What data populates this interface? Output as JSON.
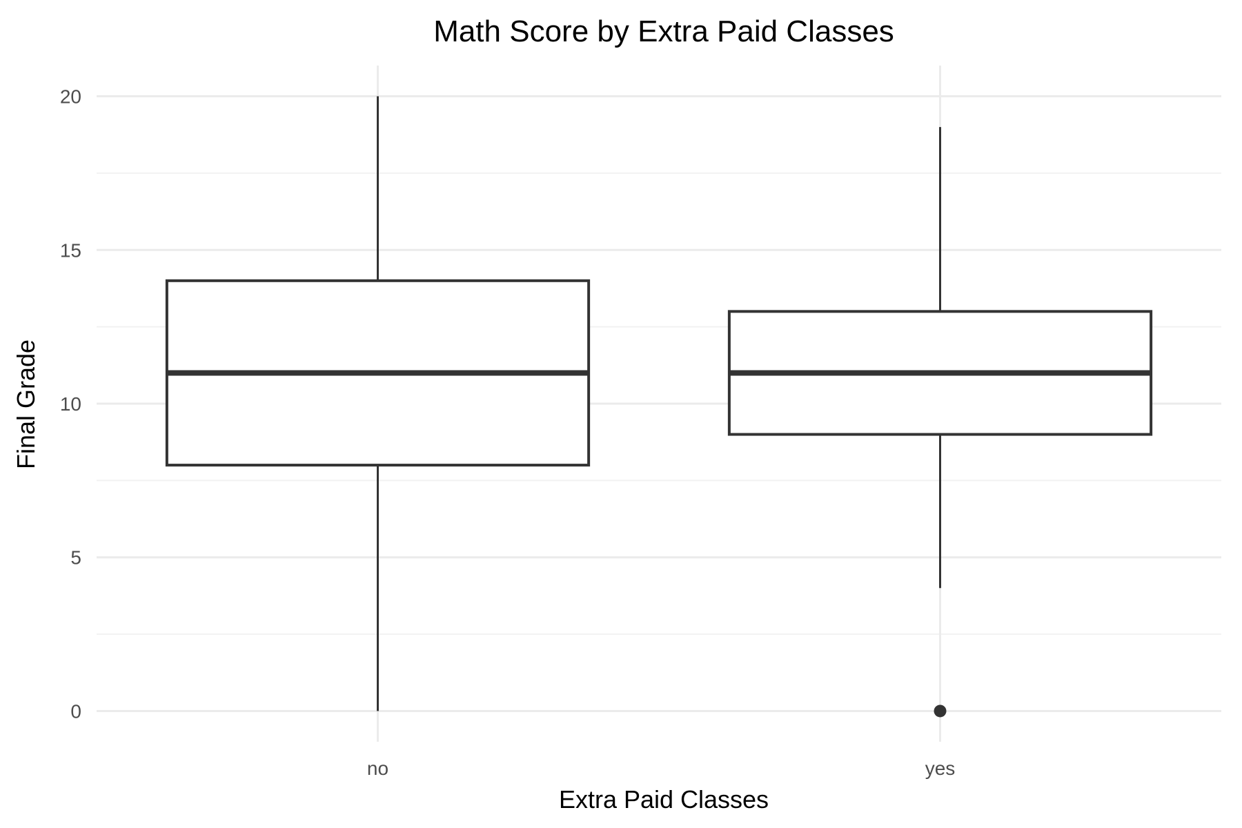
{
  "chart_data": {
    "type": "box",
    "title": "Math Score by Extra Paid Classes",
    "xlabel": "Extra Paid Classes",
    "ylabel": "Final Grade",
    "categories": [
      "no",
      "yes"
    ],
    "ylim": [
      -1,
      21
    ],
    "yticks": [
      0,
      5,
      10,
      15,
      20
    ],
    "yticks_minor": [
      2.5,
      7.5,
      12.5,
      17.5
    ],
    "grid": true,
    "boxes": [
      {
        "category": "no",
        "whisker_low": 0,
        "q1": 8,
        "median": 11,
        "q3": 14,
        "whisker_high": 20,
        "outliers": []
      },
      {
        "category": "yes",
        "whisker_low": 4,
        "q1": 9,
        "median": 11,
        "q3": 13,
        "whisker_high": 19,
        "outliers": [
          0
        ]
      }
    ],
    "colors": {
      "box_line": "#333333",
      "box_fill": "#ffffff",
      "grid_major": "#ebebeb",
      "grid_minor": "#f2f2f2",
      "tick_text": "#4d4d4d"
    }
  }
}
